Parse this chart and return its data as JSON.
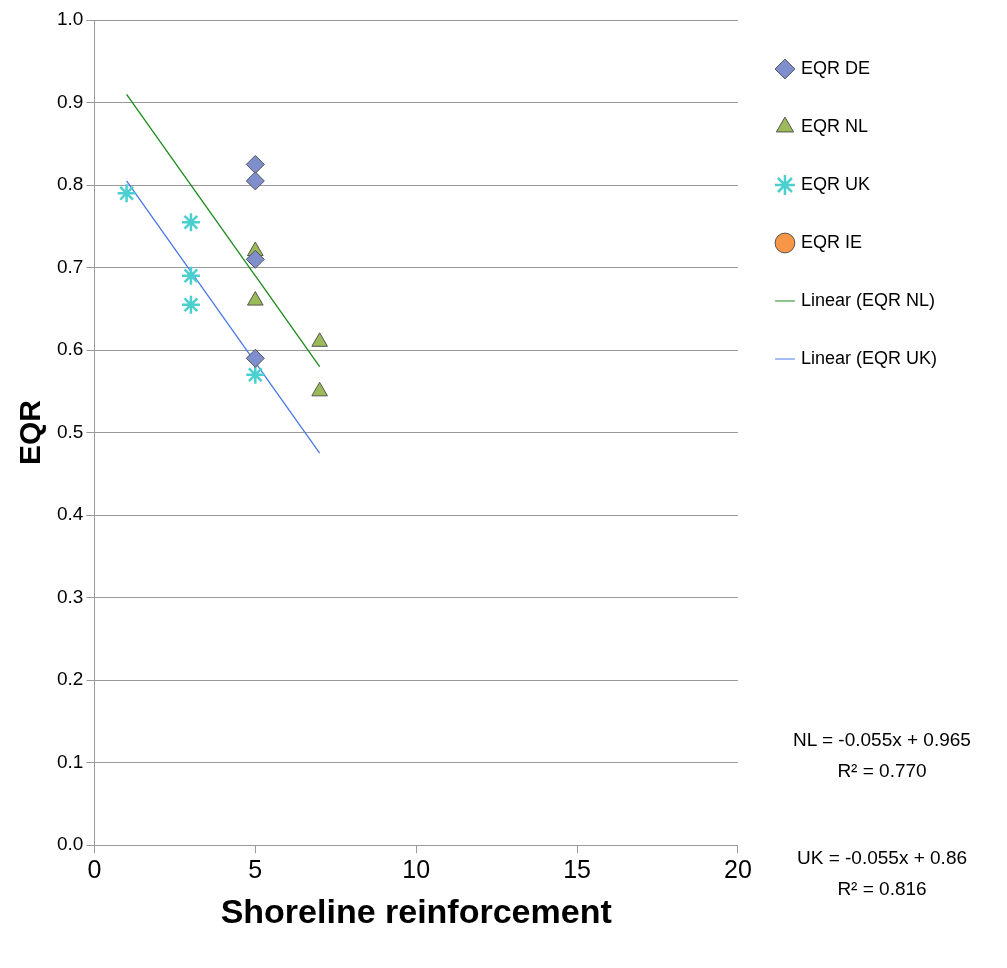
{
  "chart_data": {
    "type": "scatter",
    "xlabel": "Shoreline reinforcement",
    "ylabel": "EQR",
    "xlim": [
      0,
      20
    ],
    "xticks": [
      0,
      5,
      10,
      15,
      20
    ],
    "ylim": [
      0,
      1
    ],
    "yticks": [
      {
        "value": 0,
        "label": "0.0"
      },
      {
        "value": 0.1,
        "label": "0.1"
      },
      {
        "value": 0.2,
        "label": "0.2"
      },
      {
        "value": 0.3,
        "label": "0.3"
      },
      {
        "value": 0.4,
        "label": "0.4"
      },
      {
        "value": 0.5,
        "label": "0.5"
      },
      {
        "value": 0.6,
        "label": "0.6"
      },
      {
        "value": 0.7,
        "label": "0.7"
      },
      {
        "value": 0.8,
        "label": "0.8"
      },
      {
        "value": 0.9,
        "label": "0.9"
      },
      {
        "value": 1,
        "label": "1.0"
      }
    ],
    "grid": "y",
    "legend": "right",
    "series": [
      {
        "name": "EQR DE",
        "color": "#7f8fce",
        "marker": "diamond",
        "x": [
          5,
          5,
          5,
          5
        ],
        "values": [
          0.825,
          0.805,
          0.71,
          0.59
        ]
      },
      {
        "name": "EQR NL",
        "color": "#9bbb59",
        "marker": "triangle",
        "x": [
          5,
          5,
          7,
          7
        ],
        "values": [
          0.72,
          0.66,
          0.61,
          0.55
        ]
      },
      {
        "name": "EQR UK",
        "color": "#4bcfcf",
        "marker": "cross",
        "x": [
          1,
          3,
          3,
          3,
          5
        ],
        "values": [
          0.79,
          0.755,
          0.69,
          0.655,
          0.57
        ]
      },
      {
        "name": "EQR IE",
        "color": "#f79646",
        "marker": "circle"
      },
      {
        "name": "Linear (EQR NL)",
        "type": "line",
        "color": "#1a8a1a",
        "marker": "none",
        "x": [
          1,
          7
        ],
        "values": [
          0.91,
          0.58
        ]
      },
      {
        "name": "Linear (EQR UK)",
        "type": "line",
        "color": "#4a78e8",
        "marker": "none",
        "x": [
          1,
          7
        ],
        "values": [
          0.805,
          0.475
        ]
      }
    ],
    "annotations": [
      "NL = -0.055x + 0.965\nR² = 0.770",
      "UK = -0.055x + 0.86\nR² = 0.816"
    ]
  }
}
